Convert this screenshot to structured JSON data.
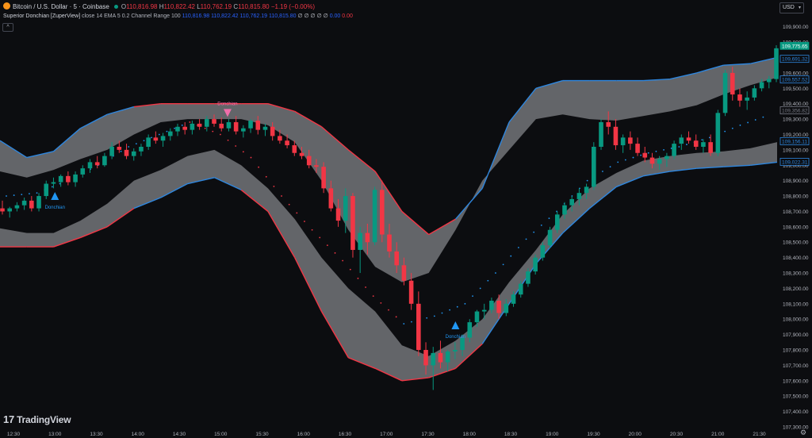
{
  "header": {
    "symbol": "Bitcoin / U.S. Dollar · 5 · Coinbase",
    "o_label": "O",
    "o_value": "110,816.98",
    "h_label": "H",
    "h_value": "110,822.42",
    "l_label": "L",
    "l_value": "110,762.19",
    "c_label": "C",
    "c_value": "110,815.80",
    "change": "−1.19 (−0.00%)"
  },
  "indicator": {
    "name": "Superior Donchian [ZuperView]",
    "params": "close 14 EMA 5 0.2 Channel Range 100",
    "v1": "110,816.98",
    "v2": "110,822.42",
    "v3": "110,762.19",
    "v4": "110,815.80",
    "symbols": "∅ ∅ ∅ ∅ ∅",
    "v5": "0.00",
    "v6": "0.00"
  },
  "currency_button": "USD",
  "branding": "TradingView",
  "colors": {
    "up": "#089981",
    "down": "#f23645",
    "band_fill": "#6b6d71",
    "upper_line_bull": "#2e86de",
    "upper_line_bear": "#f23645",
    "buy_signal": "#2196f3",
    "sell_signal": "#f06eaa",
    "background": "#0c0d10"
  },
  "chart_data": {
    "type": "candlestick",
    "title": "Bitcoin / U.S. Dollar · 5 · Coinbase",
    "ylim": [
      107300,
      109950
    ],
    "y_ticks": [
      "109,900.00",
      "109,800.00",
      "109,700.00",
      "109,600.00",
      "109,500.00",
      "109,400.00",
      "109,300.00",
      "109,200.00",
      "109,100.00",
      "109,000.00",
      "108,900.00",
      "108,800.00",
      "108,700.00",
      "108,600.00",
      "108,500.00",
      "108,400.00",
      "108,300.00",
      "108,200.00",
      "108,100.00",
      "108,000.00",
      "107,900.00",
      "107,800.00",
      "107,700.00",
      "107,600.00",
      "107,500.00",
      "107,400.00",
      "107,300.00"
    ],
    "x_ticks": [
      "12:30",
      "13:00",
      "13:30",
      "14:00",
      "14:30",
      "15:00",
      "15:30",
      "16:00",
      "16:30",
      "17:00",
      "17:30",
      "18:00",
      "18:30",
      "19:00",
      "19:30",
      "20:00",
      "20:30",
      "21:00",
      "21:30"
    ],
    "price_labels": [
      {
        "text": "109,775.65",
        "value": 109775.65,
        "color": "#089981"
      },
      {
        "text": "109,691.32",
        "value": 109691.32,
        "color": "#2e86de"
      },
      {
        "text": "109,557.52",
        "value": 109557.52,
        "color": "#2e86de"
      },
      {
        "text": "109,356.82",
        "value": 109356.82,
        "color": "#787b86"
      },
      {
        "text": "109,156.11",
        "value": 109156.11,
        "color": "#2e86de"
      },
      {
        "text": "109,022.31",
        "value": 109022.31,
        "color": "#2e86de"
      }
    ],
    "signals": [
      {
        "label": "Donchian",
        "type": "buy",
        "time": "13:00",
        "price": 108800
      },
      {
        "label": "Donchian",
        "type": "sell",
        "time": "15:05",
        "price": 109340
      },
      {
        "label": "Donchian",
        "type": "buy",
        "time": "17:50",
        "price": 107960
      }
    ],
    "series": [
      {
        "name": "Donchian upper",
        "points": [
          [
            108960,
            109160
          ],
          [
            108920,
            109050
          ],
          [
            108970,
            109090
          ],
          [
            109040,
            109240
          ],
          [
            109100,
            109330
          ],
          [
            109200,
            109380
          ],
          [
            109280,
            109400
          ],
          [
            109300,
            109400
          ],
          [
            109300,
            109400
          ],
          [
            109300,
            109400
          ],
          [
            109260,
            109400
          ],
          [
            109150,
            109350
          ],
          [
            108900,
            109250
          ],
          [
            108580,
            109100
          ],
          [
            108340,
            108960
          ],
          [
            108240,
            108700
          ],
          [
            108300,
            108550
          ],
          [
            108580,
            108650
          ],
          [
            108900,
            108850
          ],
          [
            109100,
            109280
          ],
          [
            109300,
            109500
          ],
          [
            109330,
            109550
          ],
          [
            109300,
            109550
          ],
          [
            109290,
            109550
          ],
          [
            109320,
            109550
          ],
          [
            109350,
            109560
          ],
          [
            109390,
            109600
          ],
          [
            109460,
            109650
          ],
          [
            109520,
            109660
          ],
          [
            109570,
            109700
          ]
        ]
      },
      {
        "name": "Donchian lower",
        "points": [
          [
            108470,
            108590
          ],
          [
            108470,
            108560
          ],
          [
            108470,
            108560
          ],
          [
            108530,
            108640
          ],
          [
            108600,
            108750
          ],
          [
            108720,
            108900
          ],
          [
            108790,
            108970
          ],
          [
            108880,
            109060
          ],
          [
            108920,
            109100
          ],
          [
            108840,
            109000
          ],
          [
            108700,
            108850
          ],
          [
            108400,
            108650
          ],
          [
            108050,
            108400
          ],
          [
            107750,
            108200
          ],
          [
            107680,
            108050
          ],
          [
            107600,
            107830
          ],
          [
            107620,
            107760
          ],
          [
            107680,
            107860
          ],
          [
            107840,
            108000
          ],
          [
            108100,
            108240
          ],
          [
            108360,
            108450
          ],
          [
            108560,
            108680
          ],
          [
            108720,
            108850
          ],
          [
            108860,
            108950
          ],
          [
            108930,
            109030
          ],
          [
            108960,
            109060
          ],
          [
            108980,
            109080
          ],
          [
            108990,
            109090
          ],
          [
            109000,
            109110
          ],
          [
            109020,
            109150
          ]
        ]
      },
      {
        "name": "Trailing dots",
        "points": [
          [
            108800,
            "up"
          ],
          [
            108820,
            "up"
          ],
          [
            108900,
            "up"
          ],
          [
            109000,
            "up"
          ],
          [
            109120,
            "up"
          ],
          [
            109200,
            "up"
          ],
          [
            109280,
            "down"
          ],
          [
            109200,
            "down"
          ],
          [
            109050,
            "down"
          ],
          [
            108800,
            "down"
          ],
          [
            108580,
            "down"
          ],
          [
            108380,
            "down"
          ],
          [
            108150,
            "down"
          ],
          [
            107970,
            "up"
          ],
          [
            108020,
            "up"
          ],
          [
            108100,
            "up"
          ],
          [
            108300,
            "up"
          ],
          [
            108520,
            "up"
          ],
          [
            108700,
            "up"
          ],
          [
            108900,
            "up"
          ],
          [
            109020,
            "up"
          ],
          [
            109080,
            "up"
          ],
          [
            109120,
            "up"
          ],
          [
            109180,
            "up"
          ],
          [
            109260,
            "up"
          ],
          [
            109330,
            "up"
          ]
        ]
      }
    ],
    "candles": [
      [
        108720,
        108770,
        108680,
        108700
      ],
      [
        108700,
        108730,
        108660,
        108720
      ],
      [
        108720,
        108760,
        108700,
        108740
      ],
      [
        108740,
        108790,
        108710,
        108770
      ],
      [
        108770,
        108800,
        108700,
        108720
      ],
      [
        108720,
        108820,
        108700,
        108800
      ],
      [
        108800,
        108900,
        108780,
        108880
      ],
      [
        108880,
        108920,
        108850,
        108890
      ],
      [
        108890,
        108940,
        108860,
        108930
      ],
      [
        108930,
        108960,
        108870,
        108890
      ],
      [
        108890,
        108960,
        108860,
        108940
      ],
      [
        108940,
        109000,
        108920,
        108980
      ],
      [
        108980,
        109040,
        108950,
        109020
      ],
      [
        109020,
        109060,
        108980,
        109000
      ],
      [
        109000,
        109080,
        108990,
        109060
      ],
      [
        109060,
        109150,
        109040,
        109120
      ],
      [
        109120,
        109160,
        109080,
        109100
      ],
      [
        109100,
        109140,
        109040,
        109060
      ],
      [
        109060,
        109110,
        109030,
        109090
      ],
      [
        109090,
        109140,
        109060,
        109120
      ],
      [
        109120,
        109200,
        109100,
        109180
      ],
      [
        109180,
        109220,
        109140,
        109160
      ],
      [
        109160,
        109210,
        109120,
        109190
      ],
      [
        109190,
        109240,
        109160,
        109220
      ],
      [
        109220,
        109270,
        109190,
        109250
      ],
      [
        109250,
        109280,
        109200,
        109230
      ],
      [
        109230,
        109290,
        109200,
        109270
      ],
      [
        109270,
        109300,
        109230,
        109250
      ],
      [
        109250,
        109320,
        109220,
        109300
      ],
      [
        109300,
        109330,
        109250,
        109270
      ],
      [
        109270,
        109310,
        109220,
        109240
      ],
      [
        109240,
        109300,
        109220,
        109280
      ],
      [
        109280,
        109320,
        109200,
        109220
      ],
      [
        109220,
        109260,
        109180,
        109240
      ],
      [
        109240,
        109300,
        109210,
        109290
      ],
      [
        109290,
        109320,
        109200,
        109230
      ],
      [
        109230,
        109270,
        109190,
        109250
      ],
      [
        109250,
        109280,
        109160,
        109190
      ],
      [
        109190,
        109230,
        109140,
        109160
      ],
      [
        109160,
        109200,
        109110,
        109130
      ],
      [
        109130,
        109160,
        109060,
        109080
      ],
      [
        109080,
        109120,
        109040,
        109060
      ],
      [
        109060,
        109100,
        108980,
        109000
      ],
      [
        109000,
        109040,
        108950,
        108990
      ],
      [
        108990,
        109020,
        108820,
        108850
      ],
      [
        108850,
        108900,
        108700,
        108720
      ],
      [
        108720,
        108780,
        108600,
        108640
      ],
      [
        108640,
        108850,
        108560,
        108800
      ],
      [
        108800,
        108820,
        108400,
        108450
      ],
      [
        108450,
        108600,
        108300,
        108560
      ],
      [
        108560,
        108620,
        108420,
        108500
      ],
      [
        108500,
        108860,
        108480,
        108840
      ],
      [
        108840,
        108900,
        108500,
        108550
      ],
      [
        108550,
        108620,
        108400,
        108440
      ],
      [
        108440,
        108500,
        108300,
        108350
      ],
      [
        108350,
        108400,
        108220,
        108250
      ],
      [
        108250,
        108300,
        108060,
        108100
      ],
      [
        108100,
        108180,
        107760,
        107800
      ],
      [
        107800,
        107850,
        107640,
        107700
      ],
      [
        107700,
        107820,
        107540,
        107780
      ],
      [
        107780,
        107860,
        107680,
        107720
      ],
      [
        107720,
        107800,
        107660,
        107790
      ],
      [
        107790,
        107850,
        107740,
        107800
      ],
      [
        107800,
        107900,
        107760,
        107880
      ],
      [
        107880,
        108000,
        107850,
        107980
      ],
      [
        107980,
        108060,
        107950,
        108050
      ],
      [
        108050,
        108100,
        108000,
        108060
      ],
      [
        108060,
        108140,
        108040,
        108120
      ],
      [
        108120,
        108160,
        108000,
        108040
      ],
      [
        108040,
        108130,
        108020,
        108100
      ],
      [
        108100,
        108180,
        108080,
        108160
      ],
      [
        108160,
        108250,
        108140,
        108230
      ],
      [
        108230,
        108330,
        108210,
        108310
      ],
      [
        108310,
        108420,
        108290,
        108400
      ],
      [
        108400,
        108500,
        108380,
        108480
      ],
      [
        108480,
        108600,
        108460,
        108580
      ],
      [
        108580,
        108700,
        108560,
        108680
      ],
      [
        108680,
        108760,
        108650,
        108740
      ],
      [
        108740,
        108800,
        108700,
        108780
      ],
      [
        108780,
        108850,
        108740,
        108820
      ],
      [
        108820,
        108880,
        108780,
        108860
      ],
      [
        108860,
        109150,
        108840,
        109120
      ],
      [
        109120,
        109300,
        109100,
        109280
      ],
      [
        109280,
        109350,
        109200,
        109250
      ],
      [
        109250,
        109300,
        109100,
        109130
      ],
      [
        109130,
        109200,
        109080,
        109180
      ],
      [
        109180,
        109220,
        109100,
        109140
      ],
      [
        109140,
        109180,
        109060,
        109080
      ],
      [
        109080,
        109120,
        109020,
        109050
      ],
      [
        109050,
        109080,
        108980,
        109010
      ],
      [
        109010,
        109060,
        108970,
        109040
      ],
      [
        109040,
        109080,
        108990,
        109060
      ],
      [
        109060,
        109160,
        109040,
        109140
      ],
      [
        109140,
        109200,
        109100,
        109180
      ],
      [
        109180,
        109220,
        109140,
        109160
      ],
      [
        109160,
        109200,
        109100,
        109120
      ],
      [
        109120,
        109170,
        109080,
        109150
      ],
      [
        109150,
        109200,
        109060,
        109080
      ],
      [
        109080,
        109360,
        109060,
        109340
      ],
      [
        109340,
        109620,
        109320,
        109600
      ],
      [
        109600,
        109640,
        109420,
        109460
      ],
      [
        109460,
        109500,
        109380,
        109420
      ],
      [
        109420,
        109480,
        109360,
        109440
      ],
      [
        109440,
        109520,
        109420,
        109500
      ],
      [
        109500,
        109560,
        109480,
        109540
      ],
      [
        109540,
        109580,
        109500,
        109560
      ],
      [
        109560,
        109780,
        109540,
        109760
      ]
    ]
  }
}
